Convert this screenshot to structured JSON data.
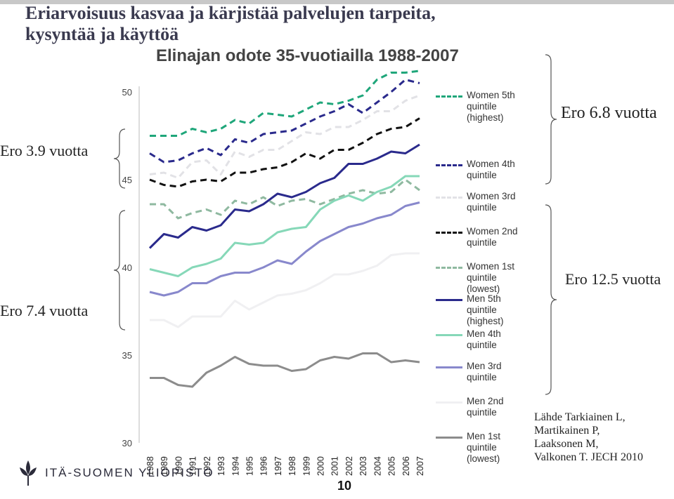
{
  "header": {
    "line1": "Eriarvoisuus kasvaa ja kärjistää palvelujen tarpeita,",
    "line2": "kysyntää ja käyttöä"
  },
  "notes": {
    "women_low_gap": "Ero 3.9 vuotta",
    "men_low_gap": "Ero  7.4 vuotta",
    "women_gap": "Ero 6.8 vuotta",
    "men_gap": "Ero 12.5 vuotta"
  },
  "source": {
    "line1": "Lähde Tarkiainen L,",
    "line2": "Martikainen P,",
    "line3": "Laaksonen M,",
    "line4": "Valkonen T. JECH 2010"
  },
  "logo": {
    "text": "ITÄ-SUOMEN YLIOPISTO",
    "icon": "university-flower-icon"
  },
  "page_number": "10",
  "chart_data": {
    "type": "line",
    "title": "Elinajan odote 35-vuotiailla 1988-2007",
    "xlabel": "",
    "ylabel": "",
    "ylim": [
      30,
      50
    ],
    "yticks": [
      30,
      35,
      40,
      45,
      50
    ],
    "x": [
      "1988",
      "1989",
      "1990",
      "1991",
      "1992",
      "1993",
      "1994",
      "1995",
      "1996",
      "1997",
      "1998",
      "1999",
      "2000",
      "2001",
      "2002",
      "2003",
      "2004",
      "2005",
      "2006",
      "2007"
    ],
    "legend_position": "right",
    "series": [
      {
        "name": "Women 5th quintile (highest)",
        "color": "#1fa67a",
        "dash": "dashed",
        "values": [
          47.5,
          47.5,
          47.5,
          47.9,
          47.7,
          47.9,
          48.4,
          48.2,
          48.8,
          48.7,
          48.6,
          49.0,
          49.4,
          49.3,
          49.5,
          49.8,
          50.7,
          51.1,
          51.1,
          51.2
        ]
      },
      {
        "name": "Women 4th quintile",
        "color": "#2a2a8c",
        "dash": "dashed",
        "values": [
          46.5,
          46.0,
          46.1,
          46.5,
          46.8,
          46.4,
          47.3,
          47.1,
          47.6,
          47.7,
          47.8,
          48.2,
          48.6,
          48.9,
          49.3,
          48.8,
          49.4,
          50.0,
          50.7,
          50.5
        ]
      },
      {
        "name": "Women 3rd quintile",
        "color": "#e2e2e6",
        "dash": "dashed",
        "values": [
          45.3,
          45.4,
          45.1,
          46.0,
          46.1,
          45.3,
          46.6,
          46.3,
          46.7,
          46.7,
          47.2,
          47.7,
          47.6,
          48.0,
          48.0,
          48.4,
          48.9,
          48.9,
          49.5,
          49.8
        ]
      },
      {
        "name": "Women 2nd quintile",
        "color": "#111111",
        "dash": "dashed",
        "values": [
          45.0,
          44.7,
          44.6,
          44.9,
          45.0,
          44.9,
          45.4,
          45.4,
          45.6,
          45.7,
          46.0,
          46.5,
          46.2,
          46.7,
          46.7,
          47.1,
          47.6,
          47.9,
          48.0,
          48.5
        ]
      },
      {
        "name": "Women 1st quintile (lowest)",
        "color": "#8fb9a0",
        "dash": "dashed",
        "values": [
          43.6,
          43.6,
          42.8,
          43.1,
          43.3,
          43.0,
          43.8,
          43.6,
          44.0,
          43.5,
          43.8,
          43.9,
          43.6,
          43.9,
          44.2,
          44.4,
          44.2,
          44.3,
          45.0,
          44.4
        ]
      },
      {
        "name": "Men 5th quintile (highest)",
        "color": "#2a2a8c",
        "dash": "solid",
        "values": [
          41.1,
          41.9,
          41.7,
          42.3,
          42.1,
          42.4,
          43.3,
          43.2,
          43.6,
          44.2,
          44.0,
          44.3,
          44.8,
          45.1,
          45.9,
          45.9,
          46.2,
          46.6,
          46.5,
          47.0
        ]
      },
      {
        "name": "Men 4th quintile",
        "color": "#86d8b8",
        "dash": "solid",
        "values": [
          39.9,
          39.7,
          39.5,
          40.0,
          40.2,
          40.5,
          41.4,
          41.3,
          41.4,
          42.0,
          42.2,
          42.3,
          43.3,
          43.8,
          44.1,
          43.8,
          44.3,
          44.6,
          45.2,
          45.2
        ]
      },
      {
        "name": "Men 3rd quintile",
        "color": "#8888cc",
        "dash": "solid",
        "values": [
          38.6,
          38.4,
          38.6,
          39.1,
          39.1,
          39.5,
          39.7,
          39.7,
          40.0,
          40.4,
          40.2,
          40.9,
          41.5,
          41.9,
          42.3,
          42.5,
          42.8,
          43.0,
          43.5,
          43.7
        ]
      },
      {
        "name": "Men 2nd quintile",
        "color": "#f0f0f2",
        "dash": "solid",
        "values": [
          37.0,
          37.0,
          36.6,
          37.2,
          37.2,
          37.2,
          38.1,
          37.6,
          38.0,
          38.4,
          38.5,
          38.7,
          39.1,
          39.6,
          39.6,
          39.8,
          40.1,
          40.7,
          40.8,
          40.8
        ]
      },
      {
        "name": "Men 1st quintile (lowest)",
        "color": "#8c8c8c",
        "dash": "solid",
        "values": [
          33.7,
          33.7,
          33.3,
          33.2,
          34.0,
          34.4,
          34.9,
          34.5,
          34.4,
          34.4,
          34.1,
          34.2,
          34.7,
          34.9,
          34.8,
          35.1,
          35.1,
          34.6,
          34.7,
          34.6
        ]
      }
    ]
  }
}
